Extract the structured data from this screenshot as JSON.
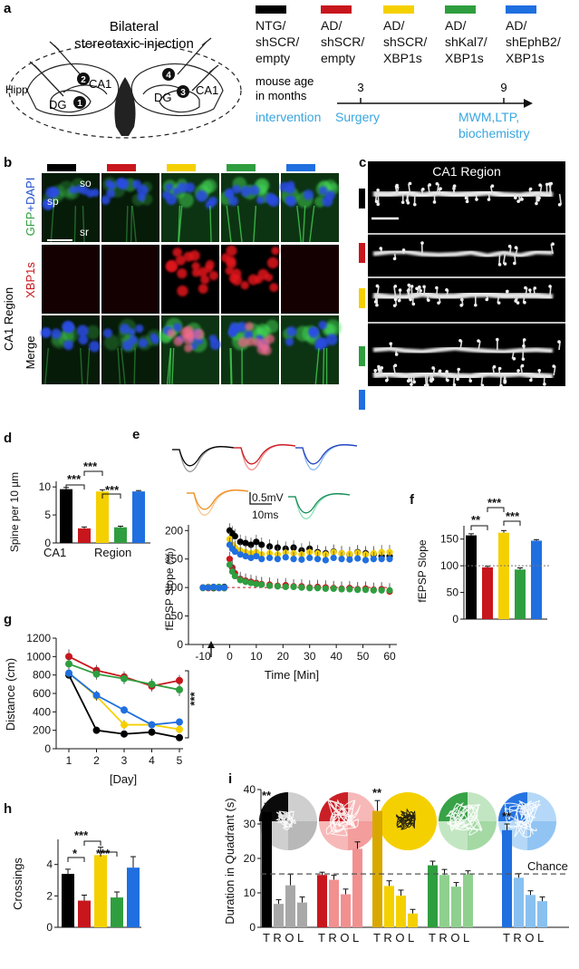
{
  "groups": [
    {
      "line1": "NTG/",
      "line2": "shSCR/",
      "line3": "empty",
      "color": "#000000"
    },
    {
      "line1": "AD/",
      "line2": "shSCR/",
      "line3": "empty",
      "color": "#c8161d"
    },
    {
      "line1": "AD/",
      "line2": "shSCR/",
      "line3": "XBP1s",
      "color": "#f5d000"
    },
    {
      "line1": "AD/",
      "line2": "shKal7/",
      "line3": "XBP1s",
      "color": "#2f9e3f"
    },
    {
      "line1": "AD/",
      "line2": "shEphB2/",
      "line3": "XBP1s",
      "color": "#1f6fe0"
    }
  ],
  "panel_a": {
    "letter": "a",
    "title1": "Bilateral",
    "title2": "stereotaxic  injection",
    "hipp": "Hipp",
    "dg": "DG",
    "ca1": "CA1",
    "sites": [
      "1",
      "2",
      "3",
      "4"
    ],
    "timeline_line1": "mouse   age",
    "timeline_line2": "in months",
    "tick1": "3",
    "tick2": "9",
    "intervention": "intervention",
    "surgery": "Surgery",
    "readout1": "MWM,LTP,",
    "readout2": "biochemistry"
  },
  "panel_b": {
    "letter": "b",
    "region": "CA1 Region",
    "row1_a": "GFP",
    "row1_b": "+DAPI",
    "row2": "XBP1s",
    "row3": "Merge",
    "so": "so",
    "sp": "sp",
    "sr": "sr"
  },
  "panel_c": {
    "letter": "c",
    "title": "CA1   Region"
  },
  "panel_d": {
    "letter": "d",
    "ylabel": "Spine per 10 µm",
    "xlabel1": "CA1",
    "xlabel2": "Region",
    "sig": [
      "***",
      "***",
      "***"
    ],
    "yticks": [
      "0",
      "5",
      "10"
    ]
  },
  "panel_e": {
    "letter": "e",
    "ylabel": "fEPSP Slope (%)",
    "xlabel": "Time [Min]",
    "scale_v": "0.5mV",
    "scale_t": "10ms",
    "yticks": [
      "0",
      "50",
      "100",
      "150",
      "200"
    ],
    "xticks": [
      "-10",
      "0",
      "10",
      "20",
      "30",
      "40",
      "50",
      "60"
    ]
  },
  "panel_f": {
    "letter": "f",
    "ylabel": "fEPSP Slope",
    "sig": [
      "**",
      "***",
      "***"
    ],
    "yticks": [
      "0",
      "50",
      "100",
      "150"
    ]
  },
  "panel_g": {
    "letter": "g",
    "ylabel": "Distance (cm)",
    "xlabel": "[Day]",
    "sig": "***",
    "yticks": [
      "0",
      "200",
      "400",
      "600",
      "800",
      "1000",
      "1200"
    ],
    "xticks": [
      "1",
      "2",
      "3",
      "4",
      "5"
    ]
  },
  "panel_h": {
    "letter": "h",
    "ylabel": "Crossings",
    "sig": [
      "*",
      "***",
      "***"
    ],
    "yticks": [
      "0",
      "2",
      "4"
    ]
  },
  "panel_i": {
    "letter": "i",
    "ylabel": "Duration in Quadrant (s)",
    "chance": "Chance",
    "quadrant_labels": "T R O L",
    "sig": "**",
    "yticks": [
      "0",
      "10",
      "20",
      "30",
      "40"
    ]
  },
  "chart_data": [
    {
      "type": "bar",
      "panel": "d",
      "ylabel": "Spine per 10 µm",
      "xlabel": "CA1 Region",
      "ylim": [
        0,
        11
      ],
      "categories": [
        "NTG/shSCR/empty",
        "AD/shSCR/empty",
        "AD/shSCR/XBP1s",
        "AD/shKal7/XBP1s",
        "AD/shEphB2/XBP1s"
      ],
      "values": [
        9.6,
        2.6,
        9.2,
        2.8,
        9.2
      ],
      "errors": [
        0.3,
        0.25,
        0.3,
        0.2,
        0.15
      ]
    },
    {
      "type": "line",
      "panel": "e",
      "ylabel": "fEPSP Slope (%)",
      "xlabel": "Time [Min]",
      "xlim": [
        -10,
        60
      ],
      "ylim": [
        0,
        210
      ],
      "x": [
        -10,
        -8,
        -6,
        -4,
        -2,
        0,
        1,
        2,
        4,
        6,
        8,
        10,
        12,
        15,
        18,
        21,
        24,
        27,
        30,
        33,
        36,
        39,
        42,
        45,
        48,
        51,
        54,
        57,
        60
      ],
      "series": [
        {
          "values": [
            100,
            101,
            99,
            100,
            101,
            200,
            195,
            190,
            180,
            178,
            175,
            180,
            175,
            172,
            170,
            168,
            170,
            165,
            168,
            162,
            160,
            163,
            160,
            158,
            162,
            160,
            158,
            155,
            155
          ],
          "color": "#000000"
        },
        {
          "values": [
            100,
            99,
            101,
            100,
            99,
            150,
            135,
            125,
            115,
            112,
            110,
            108,
            106,
            105,
            103,
            104,
            102,
            102,
            100,
            101,
            100,
            99,
            98,
            99,
            97,
            98,
            96,
            97,
            93
          ],
          "color": "#c8161d"
        },
        {
          "values": [
            100,
            101,
            100,
            99,
            100,
            185,
            175,
            170,
            165,
            162,
            160,
            162,
            158,
            160,
            158,
            161,
            160,
            158,
            162,
            160,
            158,
            162,
            160,
            159,
            161,
            158,
            160,
            162,
            162
          ],
          "color": "#f5d000"
        },
        {
          "values": [
            99,
            100,
            100,
            101,
            99,
            140,
            128,
            120,
            113,
            110,
            108,
            106,
            105,
            103,
            102,
            101,
            101,
            100,
            99,
            99,
            98,
            98,
            97,
            97,
            96,
            96,
            95,
            95,
            95
          ],
          "color": "#2f9e3f"
        },
        {
          "values": [
            100,
            100,
            101,
            99,
            100,
            175,
            168,
            163,
            158,
            155,
            152,
            155,
            150,
            152,
            150,
            153,
            150,
            149,
            152,
            150,
            148,
            152,
            150,
            149,
            151,
            148,
            150,
            150,
            150
          ],
          "color": "#1f6fe0"
        }
      ]
    },
    {
      "type": "bar",
      "panel": "f",
      "ylabel": "fEPSP Slope",
      "ylim": [
        0,
        175
      ],
      "categories": [
        "NTG/shSCR/empty",
        "AD/shSCR/empty",
        "AD/shSCR/XBP1s",
        "AD/shKal7/XBP1s",
        "AD/shEphB2/XBP1s"
      ],
      "values": [
        157,
        97,
        162,
        93,
        147
      ],
      "errors": [
        3,
        2,
        4,
        3,
        2
      ]
    },
    {
      "type": "line",
      "panel": "g",
      "ylabel": "Distance (cm)",
      "xlabel": "[Day]",
      "ylim": [
        0,
        1200
      ],
      "x": [
        1,
        2,
        3,
        4,
        5
      ],
      "series": [
        {
          "values": [
            800,
            200,
            160,
            180,
            120
          ],
          "errors": [
            40,
            20,
            20,
            20,
            20
          ],
          "color": "#000000"
        },
        {
          "values": [
            1000,
            850,
            780,
            680,
            740
          ],
          "errors": [
            80,
            60,
            60,
            60,
            60
          ],
          "color": "#c8161d"
        },
        {
          "values": [
            820,
            570,
            260,
            260,
            210
          ],
          "errors": [
            50,
            50,
            50,
            40,
            40
          ],
          "color": "#f5d000"
        },
        {
          "values": [
            920,
            810,
            760,
            700,
            640
          ],
          "errors": [
            60,
            60,
            60,
            60,
            70
          ],
          "color": "#2f9e3f"
        },
        {
          "values": [
            820,
            580,
            420,
            260,
            290
          ],
          "errors": [
            50,
            50,
            40,
            40,
            40
          ],
          "color": "#1f6fe0"
        }
      ]
    },
    {
      "type": "bar",
      "panel": "h",
      "ylabel": "Crossings",
      "ylim": [
        0,
        5.6
      ],
      "categories": [
        "NTG/shSCR/empty",
        "AD/shSCR/empty",
        "AD/shSCR/XBP1s",
        "AD/shKal7/XBP1s",
        "AD/shEphB2/XBP1s"
      ],
      "values": [
        3.4,
        1.7,
        4.6,
        1.9,
        3.8
      ],
      "errors": [
        0.3,
        0.35,
        0.5,
        0.35,
        0.7
      ]
    },
    {
      "type": "bar",
      "panel": "i",
      "ylabel": "Duration in Quadrant (s)",
      "ylim": [
        0,
        40
      ],
      "categories": [
        "T",
        "R",
        "O",
        "L"
      ],
      "chance_level": 15.5,
      "series": [
        {
          "values": [
            33.5,
            6.8,
            12.2,
            7.2
          ],
          "errors": [
            2.5,
            1.2,
            3.2,
            1.6
          ],
          "color": "#000000"
        },
        {
          "values": [
            15.2,
            13.8,
            9.6,
            22.8
          ],
          "errors": [
            0.8,
            1.3,
            1.5,
            2.0
          ],
          "color": "#c8161d"
        },
        {
          "values": [
            33.8,
            12.0,
            9.2,
            4.0
          ],
          "errors": [
            3.0,
            1.5,
            1.6,
            1.2
          ],
          "color": "#d9a800"
        },
        {
          "values": [
            18.0,
            15.2,
            11.8,
            15.4
          ],
          "errors": [
            1.2,
            1.6,
            1.2,
            1.0
          ],
          "color": "#2f9e3f"
        },
        {
          "values": [
            28.2,
            14.4,
            9.4,
            7.6
          ],
          "errors": [
            1.8,
            1.2,
            1.2,
            1.2
          ],
          "color": "#1f6fe0"
        }
      ]
    }
  ]
}
